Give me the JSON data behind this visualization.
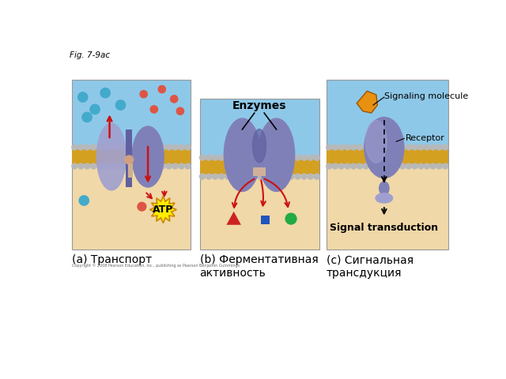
{
  "fig_label": "Fig. 7-9ac",
  "bg_color": "#ffffff",
  "panel_bg_top": "#8ec8e8",
  "panel_bg_bottom": "#f0d8a8",
  "membrane_yellow": "#d4a020",
  "membrane_bead": "#b8b8b8",
  "protein_color": "#8080b8",
  "protein_light": "#a0a0d0",
  "protein_dark": "#6060a0",
  "captions": [
    "(a) Транспорт",
    "(b) Ферментативная\nактивность",
    "(c) Сигнальная\nтрансдукция"
  ],
  "copyright": "Copyright © 2008 Pearson Education, Inc., publishing as Pearson Benjamin Cummings",
  "atp_text": "ATP",
  "enzymes_text": "Enzymes",
  "signal_mol_text": "Signaling molecule",
  "receptor_text": "Receptor",
  "signal_trans_text": "Signal transduction",
  "orange_color": "#e89010",
  "arrow_red": "#cc1111",
  "arrow_black": "#111111",
  "blue_mol": "#4488cc",
  "cyan_mol": "#44aacc",
  "red_mol": "#dd5544",
  "sq_blue": "#2255bb",
  "sq_green": "#22aa44",
  "tri_red": "#cc2222",
  "atp_yellow": "#ffee00",
  "atp_border": "#cc8800",
  "beige_connector": "#d4b090"
}
